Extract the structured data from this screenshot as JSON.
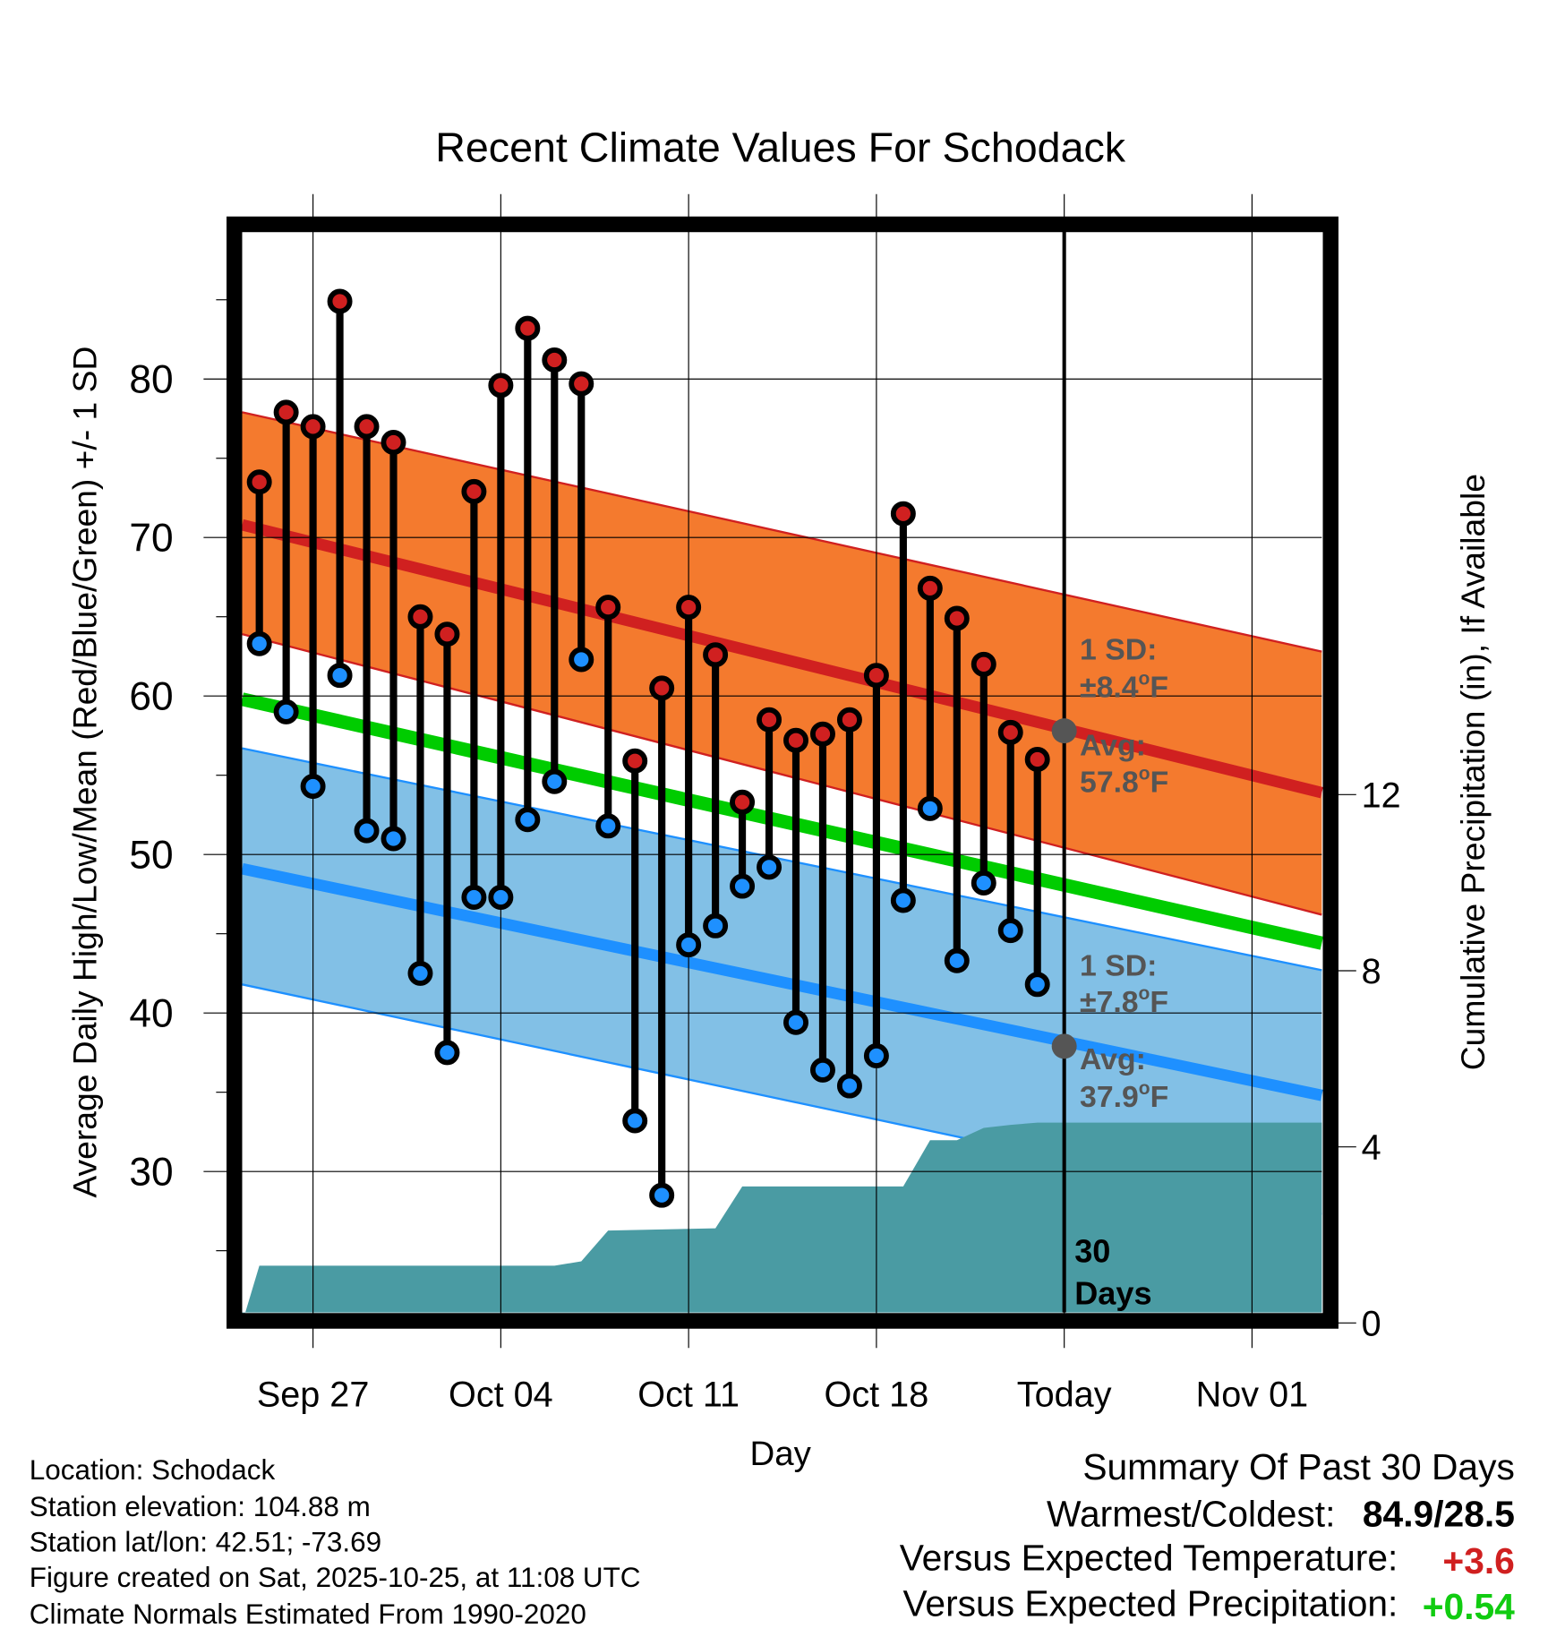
{
  "chart_data": {
    "type": "line",
    "title": "Recent Climate Values For Schodack",
    "xlabel": "Day",
    "ylabel": "Average Daily High/Low/Mean (Red/Blue/Green) +/- 1 SD",
    "y2label": "Cumulative Precipitation (in), If Available",
    "x_unit": "days since Sep 25",
    "xlim": [
      -0.64,
      39.6
    ],
    "ylim": [
      21.1,
      89.3
    ],
    "y2lim": [
      0,
      24.4
    ],
    "grid": true,
    "x_ticks": [
      {
        "day": 2,
        "label": "Sep 27"
      },
      {
        "day": 9,
        "label": "Oct 04"
      },
      {
        "day": 16,
        "label": "Oct 11"
      },
      {
        "day": 23,
        "label": "Oct 18"
      },
      {
        "day": 30,
        "label": "Today"
      },
      {
        "day": 37,
        "label": "Nov 01"
      }
    ],
    "y_ticks": [
      "30",
      "40",
      "50",
      "60",
      "70",
      "80"
    ],
    "y_minor_ticks": [
      25,
      35,
      45,
      55,
      65,
      75,
      85
    ],
    "y2_ticks": [
      "0",
      "4",
      "8",
      "12"
    ],
    "today_day": 30,
    "highs": [
      73.5,
      77.9,
      77.0,
      84.9,
      77.0,
      76.0,
      65.0,
      63.9,
      72.9,
      79.6,
      83.2,
      81.2,
      79.7,
      65.6,
      55.9,
      60.5,
      65.6,
      62.6,
      53.3,
      58.5,
      57.2,
      57.6,
      58.5,
      61.3,
      71.5,
      66.8,
      64.9,
      62.0,
      57.7,
      56.0
    ],
    "lows": [
      63.3,
      59.0,
      54.3,
      61.3,
      51.5,
      51.0,
      42.5,
      37.5,
      47.3,
      47.3,
      52.2,
      54.6,
      62.3,
      51.8,
      33.2,
      28.5,
      44.3,
      45.5,
      48.0,
      49.2,
      39.4,
      36.4,
      35.4,
      37.3,
      47.1,
      52.9,
      43.3,
      48.2,
      45.2,
      41.8
    ],
    "precip_cumulative": [
      [
        -0.64,
        0
      ],
      [
        0,
        1.3
      ],
      [
        11,
        1.3
      ],
      [
        12,
        1.4
      ],
      [
        13,
        2.1
      ],
      [
        17,
        2.15
      ],
      [
        18,
        3.1
      ],
      [
        24,
        3.1
      ],
      [
        25,
        4.15
      ],
      [
        26,
        4.15
      ],
      [
        27,
        4.43
      ],
      [
        28,
        4.5
      ],
      [
        29,
        4.55
      ],
      [
        39.6,
        4.55
      ]
    ],
    "normals": {
      "high": {
        "mean": [
          70.8,
          53.9
        ],
        "upper": [
          77.9,
          62.8
        ],
        "lower": [
          63.9,
          46.2
        ],
        "color": "#d02020",
        "band_color": "#f47a2e"
      },
      "low": {
        "mean": [
          49.1,
          34.8
        ],
        "upper": [
          56.7,
          42.7
        ],
        "lower": [
          41.8,
          27.3
        ],
        "color": "#1e90ff",
        "band_color": "#82c0e6"
      },
      "mean": {
        "mean": [
          59.8,
          44.4
        ],
        "color": "#00cc00"
      }
    },
    "precip_color": "#4a9ba3",
    "annotations": {
      "high_sd_label": "1 SD:",
      "high_sd_value": "±8.4",
      "high_avg_label": "Avg:",
      "high_avg_value": "57.8",
      "high_avg": 57.8,
      "low_sd_label": "1 SD:",
      "low_sd_value": "±7.8",
      "low_avg_label": "Avg:",
      "low_avg_value": "37.9",
      "low_avg": 37.9,
      "unit": "F",
      "degree": "o",
      "window_num": "30",
      "window_label": "Days"
    }
  },
  "info": {
    "location": "Location: Schodack",
    "elevation": "Station elevation: 104.88 m",
    "latlon": "Station lat/lon: 42.51; -73.69",
    "created": "Figure created on Sat, 2025-10-25, at 11:08 UTC",
    "normals": "Climate Normals Estimated From 1990-2020"
  },
  "summary": {
    "title": "Summary Of Past 30 Days",
    "warmest_label": "Warmest/Coldest:",
    "warmest_value": "84.9/28.5",
    "temp_label": "Versus Expected Temperature:",
    "temp_value": "+3.6",
    "temp_color": "#d02020",
    "precip_label": "Versus Expected Precipitation:",
    "precip_value": "+0.54",
    "precip_color": "#11cc11"
  }
}
